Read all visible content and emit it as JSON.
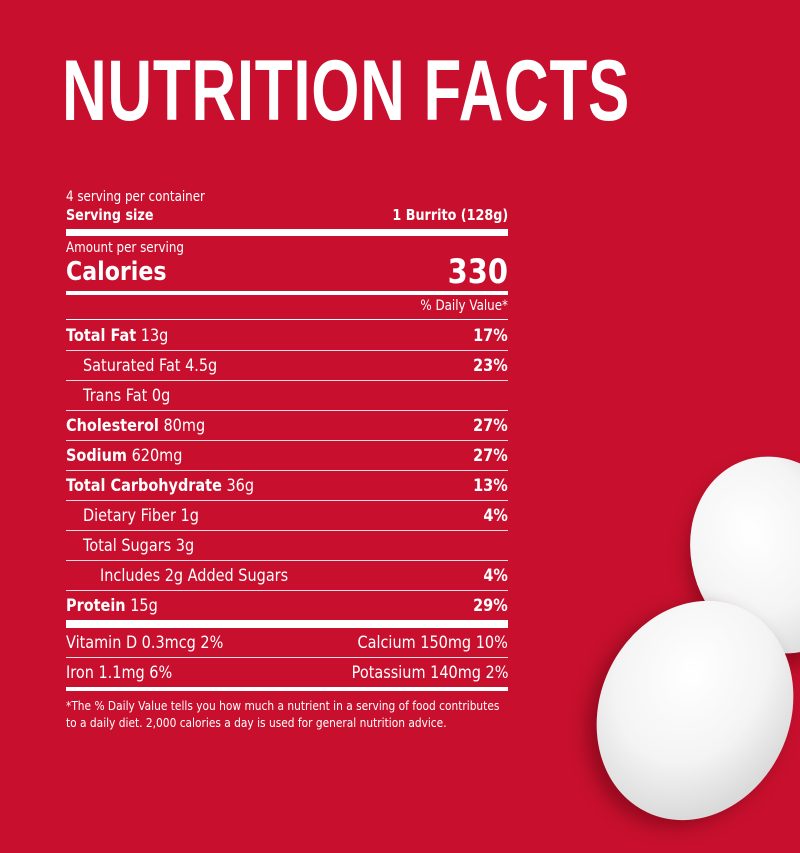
{
  "title": "NUTRITION FACTS",
  "servings_per_container": "4 serving per container",
  "serving_size_label": "Serving size",
  "serving_size_value": "1 Burrito (128g)",
  "amount_per_serving": "Amount per serving",
  "calories_label": "Calories",
  "calories_value": "330",
  "daily_value_header": "% Daily Value*",
  "nutrients": [
    {
      "name": "Total Fat",
      "amount": "13g",
      "dv": "17%",
      "bold": true,
      "indent": 0
    },
    {
      "name": "Saturated Fat",
      "amount": "4.5g",
      "dv": "23%",
      "bold": false,
      "indent": 1
    },
    {
      "name": "Trans Fat",
      "amount": "0g",
      "dv": "",
      "bold": false,
      "indent": 1
    },
    {
      "name": "Cholesterol",
      "amount": "80mg",
      "dv": "27%",
      "bold": true,
      "indent": 0
    },
    {
      "name": "Sodium",
      "amount": "620mg",
      "dv": "27%",
      "bold": true,
      "indent": 0
    },
    {
      "name": "Total Carbohydrate",
      "amount": "36g",
      "dv": "13%",
      "bold": true,
      "indent": 0
    },
    {
      "name": "Dietary Fiber",
      "amount": "1g",
      "dv": "4%",
      "bold": false,
      "indent": 1
    },
    {
      "name": "Total Sugars",
      "amount": "3g",
      "dv": "",
      "bold": false,
      "indent": 1
    },
    {
      "name": "Includes 2g Added Sugars",
      "amount": "",
      "dv": "4%",
      "bold": false,
      "indent": 2
    },
    {
      "name": "Protein",
      "amount": "15g",
      "dv": "29%",
      "bold": true,
      "indent": 0
    }
  ],
  "micros": [
    {
      "left": "Vitamin D 0.3mcg 2%",
      "right": "Calcium 150mg 10%"
    },
    {
      "left": "Iron 1.1mg 6%",
      "right": "Potassium 140mg 2%"
    }
  ],
  "footnote": "*The % Daily Value tells you how much a nutrient in a serving of food contributes to a daily diet. 2,000 calories a day is used for general nutrition advice.",
  "colors": {
    "background": "#c8102e",
    "text": "#ffffff"
  }
}
